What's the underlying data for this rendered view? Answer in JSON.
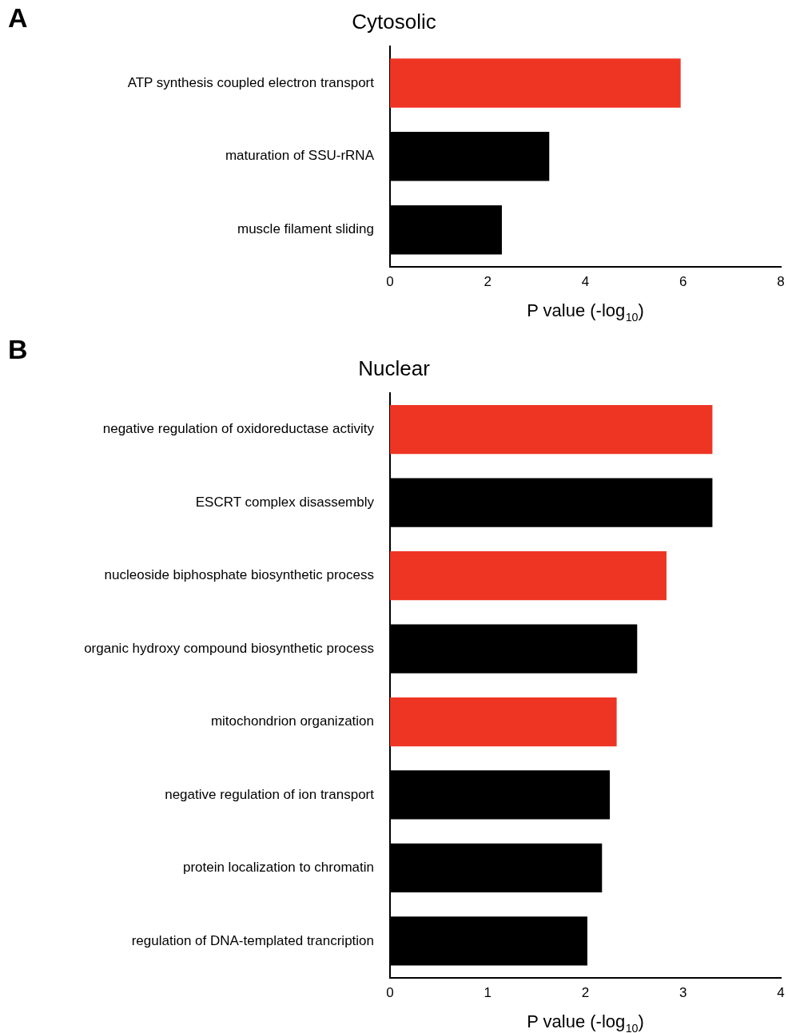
{
  "chart_data": [
    {
      "type": "bar",
      "orientation": "horizontal",
      "title": "Cytosolic",
      "xlabel": "P value (-log$_{10}$)",
      "annotations": [
        "A"
      ],
      "categories": [
        "ATP synthesis coupled electron transport",
        "maturation of SSU-rRNA",
        "muscle filament sliding"
      ],
      "values": [
        5.95,
        3.26,
        2.29
      ],
      "colors": [
        "#ee3524",
        "#000000",
        "#000000"
      ],
      "xlim": [
        0,
        8
      ],
      "xticks": [
        0,
        2,
        4,
        6,
        8
      ]
    },
    {
      "type": "bar",
      "orientation": "horizontal",
      "title": "Nuclear",
      "xlabel": "P value (-log$_{10}$)",
      "annotations": [
        "B"
      ],
      "categories": [
        "negative regulation of oxidoreductase activity",
        "ESCRT complex disassembly",
        "nucleoside biphosphate biosynthetic process",
        "organic hydroxy compound biosynthetic process",
        "mitochondrion organization",
        "negative regulation of ion transport",
        "protein localization to chromatin",
        "regulation of DNA-templated trancription"
      ],
      "values": [
        3.3,
        3.3,
        2.83,
        2.53,
        2.32,
        2.25,
        2.17,
        2.02
      ],
      "colors": [
        "#ee3524",
        "#000000",
        "#ee3524",
        "#000000",
        "#ee3524",
        "#000000",
        "#000000",
        "#000000"
      ],
      "xlim": [
        0,
        4
      ],
      "xticks": [
        0,
        1,
        2,
        3,
        4
      ]
    }
  ]
}
